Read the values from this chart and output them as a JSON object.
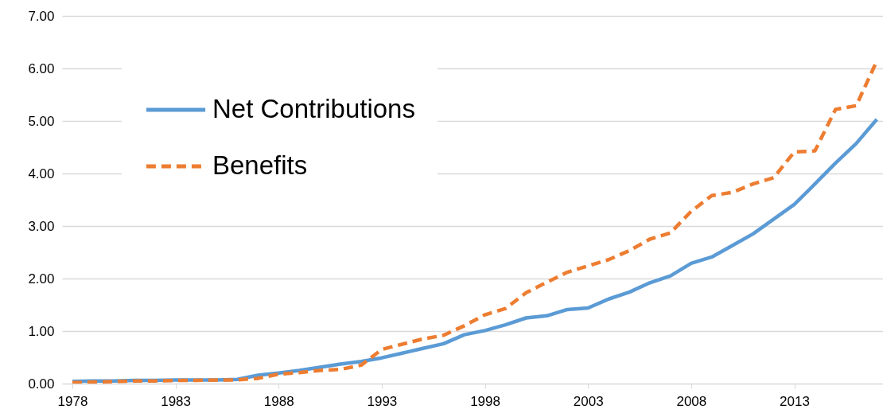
{
  "chart_data": {
    "type": "line",
    "x": [
      1978,
      1979,
      1980,
      1981,
      1982,
      1983,
      1984,
      1985,
      1986,
      1987,
      1988,
      1989,
      1990,
      1991,
      1992,
      1993,
      1994,
      1995,
      1996,
      1997,
      1998,
      1999,
      2000,
      2001,
      2002,
      2003,
      2004,
      2005,
      2006,
      2007,
      2008,
      2009,
      2010,
      2011,
      2012,
      2013,
      2014,
      2015,
      2016,
      2017
    ],
    "series": [
      {
        "name": "Net Contributions",
        "color": "#5b9bd5",
        "line_style": "solid",
        "values": [
          0.04,
          0.05,
          0.05,
          0.06,
          0.06,
          0.07,
          0.07,
          0.07,
          0.08,
          0.16,
          0.2,
          0.25,
          0.31,
          0.37,
          0.42,
          0.49,
          0.58,
          0.67,
          0.76,
          0.93,
          1.01,
          1.12,
          1.25,
          1.29,
          1.41,
          1.44,
          1.61,
          1.74,
          1.92,
          2.05,
          2.29,
          2.41,
          2.63,
          2.85,
          3.13,
          3.41,
          3.8,
          4.2,
          4.57,
          5.03
        ]
      },
      {
        "name": "Benefits",
        "color": "#ed7d31",
        "line_style": "dashed",
        "values": [
          0.02,
          0.03,
          0.04,
          0.05,
          0.05,
          0.06,
          0.06,
          0.07,
          0.07,
          0.1,
          0.18,
          0.21,
          0.25,
          0.27,
          0.35,
          0.65,
          0.75,
          0.85,
          0.92,
          1.1,
          1.31,
          1.43,
          1.73,
          1.93,
          2.12,
          2.24,
          2.36,
          2.53,
          2.75,
          2.87,
          3.28,
          3.58,
          3.64,
          3.8,
          3.92,
          4.41,
          4.43,
          5.22,
          5.29,
          6.14
        ]
      }
    ],
    "xlim": [
      1977.5,
      2017.3
    ],
    "xticks": [
      1978,
      1983,
      1988,
      1993,
      1998,
      2003,
      2008,
      2013
    ],
    "ylim": [
      0,
      7
    ],
    "yticks": [
      {
        "value": 0,
        "label": "0.00"
      },
      {
        "value": 1,
        "label": "1.00"
      },
      {
        "value": 2,
        "label": "2.00"
      },
      {
        "value": 3,
        "label": "3.00"
      },
      {
        "value": 4,
        "label": "4.00"
      },
      {
        "value": 5,
        "label": "5.00"
      },
      {
        "value": 6,
        "label": "6.00"
      },
      {
        "value": 7,
        "label": "7.00"
      }
    ],
    "grid": "y",
    "legend": "top left",
    "marker": "none"
  }
}
